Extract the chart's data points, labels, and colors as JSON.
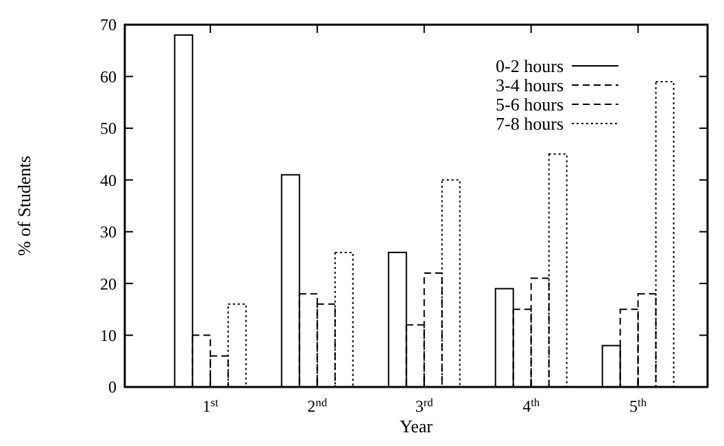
{
  "chart_data": {
    "type": "bar",
    "xlabel": "Year",
    "ylabel": "% of Students",
    "categories": [
      "1$^{st}$",
      "2$^{nd}$",
      "3$^{rd}$",
      "4$^{th}$",
      "5$^{th}$"
    ],
    "series": [
      {
        "name": "0-2 hours",
        "color": "#000000",
        "line_style": "solid",
        "values": [
          68,
          41,
          26,
          19,
          8
        ]
      },
      {
        "name": "3-4 hours",
        "color": "#000000",
        "line_style": "dashed",
        "values": [
          10,
          18,
          12,
          15,
          15
        ]
      },
      {
        "name": "5-6 hours",
        "color": "#000000",
        "line_style": "dashed",
        "values": [
          6,
          16,
          22,
          21,
          18
        ]
      },
      {
        "name": "7-8 hours",
        "color": "#000000",
        "line_style": "dotted",
        "values": [
          16,
          26,
          40,
          45,
          59
        ]
      }
    ],
    "ylim": [
      0,
      70
    ],
    "yticks": [
      0,
      10,
      20,
      30,
      40,
      50,
      60,
      70
    ],
    "grid": false,
    "legend": "top right"
  }
}
